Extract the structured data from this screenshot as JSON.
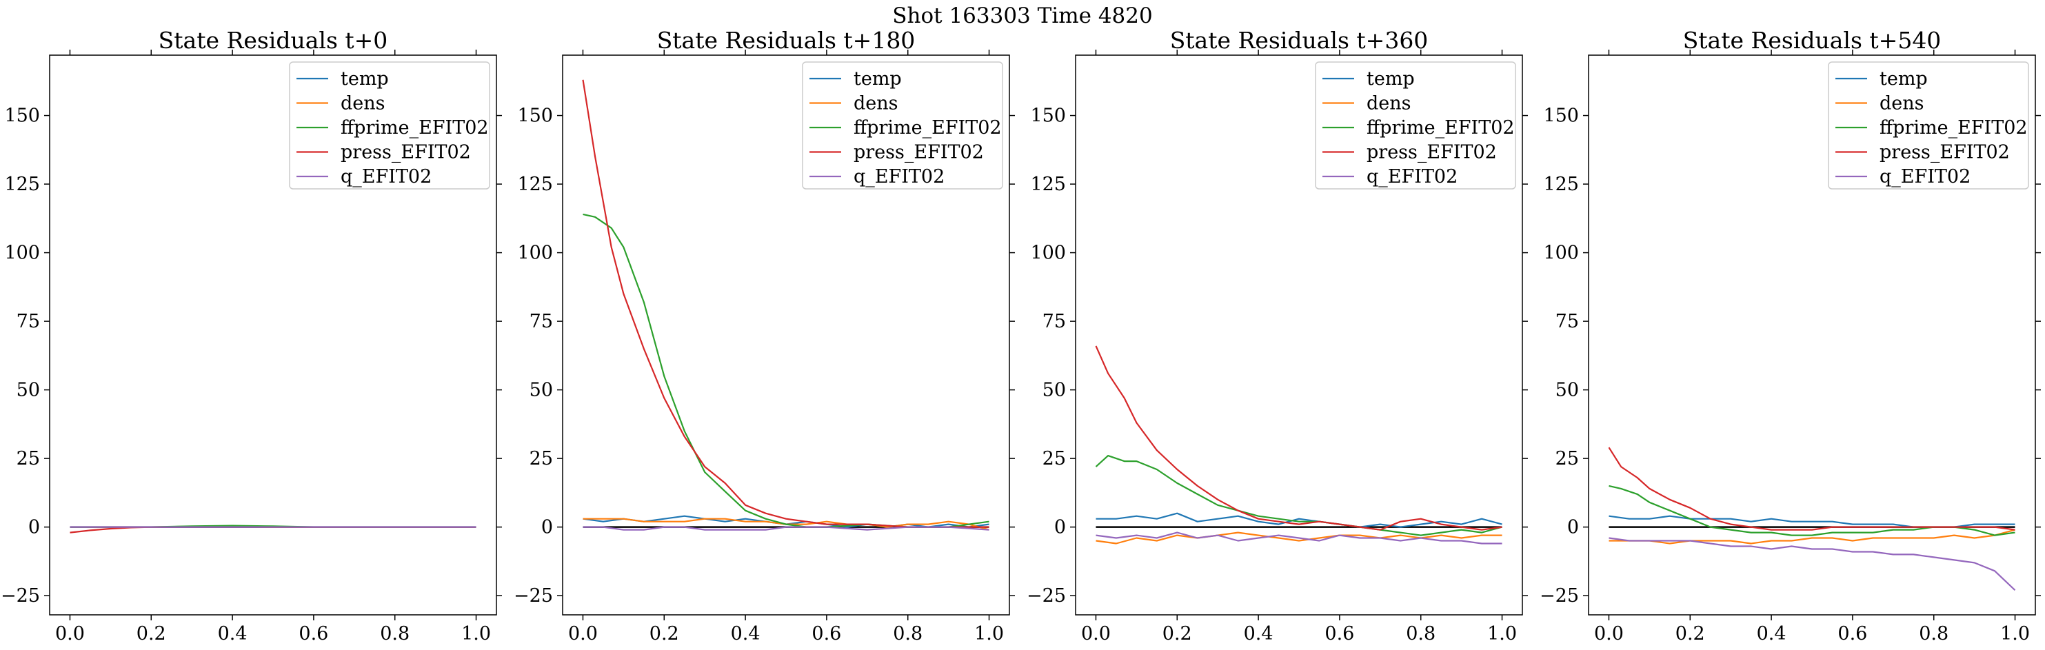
{
  "figure": {
    "suptitle": "Shot 163303   Time 4820"
  },
  "chart_data": [
    {
      "type": "line",
      "title": "State Residuals t+0",
      "xlim": [
        -0.05,
        1.05
      ],
      "ylim": [
        -32,
        172
      ],
      "xticks": [
        "0.0",
        "0.2",
        "0.4",
        "0.6",
        "0.8",
        "1.0"
      ],
      "yticks": [
        "−25",
        "0",
        "25",
        "50",
        "75",
        "100",
        "125",
        "150"
      ],
      "legend": "top-right",
      "reference_line": 0,
      "series": [
        {
          "name": "temp",
          "color": "#1f77b4",
          "x": [
            0,
            0.1,
            0.2,
            0.3,
            0.4,
            0.5,
            0.6,
            0.7,
            0.8,
            0.9,
            1.0
          ],
          "y": [
            0,
            0,
            0,
            0,
            0,
            0,
            0,
            0,
            0,
            0,
            0
          ]
        },
        {
          "name": "dens",
          "color": "#ff7f0e",
          "x": [
            0,
            0.1,
            0.2,
            0.3,
            0.4,
            0.5,
            0.6,
            0.7,
            0.8,
            0.9,
            1.0
          ],
          "y": [
            0,
            0,
            0,
            0.2,
            0.1,
            0,
            0,
            0,
            0,
            0,
            0
          ]
        },
        {
          "name": "ffprime_EFIT02",
          "color": "#2ca02c",
          "x": [
            0,
            0.1,
            0.2,
            0.3,
            0.4,
            0.5,
            0.6,
            0.7,
            0.8,
            0.9,
            1.0
          ],
          "y": [
            0,
            0,
            0,
            0.3,
            0.5,
            0.3,
            0,
            0,
            0,
            0,
            0
          ]
        },
        {
          "name": "press_EFIT02",
          "color": "#d62728",
          "x": [
            0,
            0.05,
            0.1,
            0.15,
            0.2,
            0.3,
            0.4,
            0.5,
            0.6,
            0.7,
            0.8,
            0.9,
            1.0
          ],
          "y": [
            -2,
            -1.2,
            -0.6,
            -0.2,
            0,
            0,
            0,
            0,
            0,
            0,
            0,
            0,
            0
          ]
        },
        {
          "name": "q_EFIT02",
          "color": "#9467bd",
          "x": [
            0,
            0.1,
            0.2,
            0.3,
            0.4,
            0.5,
            0.6,
            0.7,
            0.8,
            0.9,
            1.0
          ],
          "y": [
            0,
            0,
            0,
            0,
            0,
            0,
            0,
            0,
            0,
            0,
            0
          ]
        }
      ]
    },
    {
      "type": "line",
      "title": "State Residuals t+180",
      "xlim": [
        -0.05,
        1.05
      ],
      "ylim": [
        -32,
        172
      ],
      "xticks": [
        "0.0",
        "0.2",
        "0.4",
        "0.6",
        "0.8",
        "1.0"
      ],
      "yticks": [
        "−25",
        "0",
        "25",
        "50",
        "75",
        "100",
        "125",
        "150"
      ],
      "legend": "top-right",
      "reference_line": 0,
      "series": [
        {
          "name": "temp",
          "color": "#1f77b4",
          "x": [
            0,
            0.05,
            0.1,
            0.15,
            0.2,
            0.25,
            0.3,
            0.35,
            0.4,
            0.45,
            0.5,
            0.55,
            0.6,
            0.65,
            0.7,
            0.75,
            0.8,
            0.85,
            0.9,
            0.95,
            1.0
          ],
          "y": [
            3,
            2,
            3,
            2,
            3,
            4,
            3,
            2,
            3,
            2,
            1,
            2,
            1,
            0,
            1,
            0,
            1,
            0,
            1,
            0,
            1
          ]
        },
        {
          "name": "dens",
          "color": "#ff7f0e",
          "x": [
            0,
            0.05,
            0.1,
            0.15,
            0.2,
            0.25,
            0.3,
            0.35,
            0.4,
            0.45,
            0.5,
            0.55,
            0.6,
            0.65,
            0.7,
            0.75,
            0.8,
            0.85,
            0.9,
            0.95,
            1.0
          ],
          "y": [
            3,
            3,
            3,
            2,
            2,
            2,
            3,
            3,
            2,
            2,
            1,
            1,
            2,
            1,
            1,
            0,
            1,
            1,
            2,
            1,
            -1
          ]
        },
        {
          "name": "ffprime_EFIT02",
          "color": "#2ca02c",
          "x": [
            0,
            0.03,
            0.07,
            0.1,
            0.15,
            0.2,
            0.25,
            0.3,
            0.35,
            0.4,
            0.45,
            0.5,
            0.55,
            0.6,
            0.7,
            0.8,
            0.9,
            1.0
          ],
          "y": [
            114,
            113,
            109,
            102,
            82,
            55,
            35,
            20,
            13,
            6,
            3,
            1,
            0,
            0,
            1,
            0,
            0,
            2
          ]
        },
        {
          "name": "press_EFIT02",
          "color": "#d62728",
          "x": [
            0,
            0.03,
            0.07,
            0.1,
            0.15,
            0.2,
            0.25,
            0.3,
            0.35,
            0.4,
            0.45,
            0.5,
            0.55,
            0.6,
            0.7,
            0.8,
            0.9,
            1.0
          ],
          "y": [
            163,
            135,
            102,
            85,
            65,
            47,
            33,
            22,
            16,
            8,
            5,
            3,
            2,
            1,
            1,
            0,
            0,
            0
          ]
        },
        {
          "name": "q_EFIT02",
          "color": "#9467bd",
          "x": [
            0,
            0.05,
            0.1,
            0.15,
            0.2,
            0.25,
            0.3,
            0.35,
            0.4,
            0.45,
            0.5,
            0.6,
            0.7,
            0.8,
            0.9,
            1.0
          ],
          "y": [
            0,
            0,
            -1,
            -1,
            0,
            0,
            -1,
            -1,
            -1,
            -1,
            0,
            0,
            -1,
            0,
            0,
            -1
          ]
        }
      ]
    },
    {
      "type": "line",
      "title": "State Residuals t+360",
      "xlim": [
        -0.05,
        1.05
      ],
      "ylim": [
        -32,
        172
      ],
      "xticks": [
        "0.0",
        "0.2",
        "0.4",
        "0.6",
        "0.8",
        "1.0"
      ],
      "yticks": [
        "−25",
        "0",
        "25",
        "50",
        "75",
        "100",
        "125",
        "150"
      ],
      "legend": "top-right",
      "reference_line": 0,
      "series": [
        {
          "name": "temp",
          "color": "#1f77b4",
          "x": [
            0,
            0.05,
            0.1,
            0.15,
            0.2,
            0.25,
            0.3,
            0.35,
            0.4,
            0.45,
            0.5,
            0.55,
            0.6,
            0.65,
            0.7,
            0.75,
            0.8,
            0.85,
            0.9,
            0.95,
            1.0
          ],
          "y": [
            3,
            3,
            4,
            3,
            5,
            2,
            3,
            4,
            2,
            1,
            3,
            2,
            1,
            0,
            1,
            0,
            1,
            2,
            1,
            3,
            1
          ]
        },
        {
          "name": "dens",
          "color": "#ff7f0e",
          "x": [
            0,
            0.05,
            0.1,
            0.15,
            0.2,
            0.25,
            0.3,
            0.35,
            0.4,
            0.45,
            0.5,
            0.55,
            0.6,
            0.65,
            0.7,
            0.75,
            0.8,
            0.85,
            0.9,
            0.95,
            1.0
          ],
          "y": [
            -5,
            -6,
            -4,
            -5,
            -3,
            -4,
            -3,
            -2,
            -3,
            -4,
            -5,
            -4,
            -3,
            -3,
            -4,
            -3,
            -4,
            -3,
            -4,
            -3,
            -3
          ]
        },
        {
          "name": "ffprime_EFIT02",
          "color": "#2ca02c",
          "x": [
            0,
            0.03,
            0.07,
            0.1,
            0.15,
            0.2,
            0.25,
            0.3,
            0.35,
            0.4,
            0.45,
            0.5,
            0.55,
            0.6,
            0.65,
            0.7,
            0.75,
            0.8,
            0.85,
            0.9,
            0.95,
            1.0
          ],
          "y": [
            22,
            26,
            24,
            24,
            21,
            16,
            12,
            8,
            6,
            4,
            3,
            2,
            2,
            1,
            0,
            -1,
            -2,
            -3,
            -2,
            -1,
            -2,
            0
          ]
        },
        {
          "name": "press_EFIT02",
          "color": "#d62728",
          "x": [
            0,
            0.03,
            0.07,
            0.1,
            0.15,
            0.2,
            0.25,
            0.3,
            0.35,
            0.4,
            0.45,
            0.5,
            0.55,
            0.6,
            0.65,
            0.7,
            0.75,
            0.8,
            0.85,
            0.9,
            0.95,
            1.0
          ],
          "y": [
            66,
            56,
            47,
            38,
            28,
            21,
            15,
            10,
            6,
            3,
            2,
            1,
            2,
            1,
            0,
            -1,
            2,
            3,
            1,
            0,
            -1,
            0
          ]
        },
        {
          "name": "q_EFIT02",
          "color": "#9467bd",
          "x": [
            0,
            0.05,
            0.1,
            0.15,
            0.2,
            0.25,
            0.3,
            0.35,
            0.4,
            0.45,
            0.5,
            0.55,
            0.6,
            0.65,
            0.7,
            0.75,
            0.8,
            0.85,
            0.9,
            0.95,
            1.0
          ],
          "y": [
            -3,
            -4,
            -3,
            -4,
            -2,
            -4,
            -3,
            -5,
            -4,
            -3,
            -4,
            -5,
            -3,
            -4,
            -4,
            -5,
            -4,
            -5,
            -5,
            -6,
            -6
          ]
        }
      ]
    },
    {
      "type": "line",
      "title": "State Residuals t+540",
      "xlim": [
        -0.05,
        1.05
      ],
      "ylim": [
        -32,
        172
      ],
      "xticks": [
        "0.0",
        "0.2",
        "0.4",
        "0.6",
        "0.8",
        "1.0"
      ],
      "yticks": [
        "−25",
        "0",
        "25",
        "50",
        "75",
        "100",
        "125",
        "150"
      ],
      "legend": "top-right",
      "reference_line": 0,
      "series": [
        {
          "name": "temp",
          "color": "#1f77b4",
          "x": [
            0,
            0.05,
            0.1,
            0.15,
            0.2,
            0.25,
            0.3,
            0.35,
            0.4,
            0.45,
            0.5,
            0.55,
            0.6,
            0.65,
            0.7,
            0.75,
            0.8,
            0.85,
            0.9,
            0.95,
            1.0
          ],
          "y": [
            4,
            3,
            3,
            4,
            3,
            3,
            3,
            2,
            3,
            2,
            2,
            2,
            1,
            1,
            1,
            0,
            0,
            0,
            1,
            1,
            1
          ]
        },
        {
          "name": "dens",
          "color": "#ff7f0e",
          "x": [
            0,
            0.05,
            0.1,
            0.15,
            0.2,
            0.25,
            0.3,
            0.35,
            0.4,
            0.45,
            0.5,
            0.55,
            0.6,
            0.65,
            0.7,
            0.75,
            0.8,
            0.85,
            0.9,
            0.95,
            1.0
          ],
          "y": [
            -5,
            -5,
            -5,
            -6,
            -5,
            -5,
            -5,
            -6,
            -5,
            -5,
            -4,
            -4,
            -5,
            -4,
            -4,
            -4,
            -4,
            -3,
            -4,
            -3,
            -1
          ]
        },
        {
          "name": "ffprime_EFIT02",
          "color": "#2ca02c",
          "x": [
            0,
            0.03,
            0.07,
            0.1,
            0.15,
            0.2,
            0.25,
            0.3,
            0.35,
            0.4,
            0.45,
            0.5,
            0.55,
            0.6,
            0.65,
            0.7,
            0.75,
            0.8,
            0.85,
            0.9,
            0.95,
            1.0
          ],
          "y": [
            15,
            14,
            12,
            9,
            6,
            3,
            0,
            -1,
            -2,
            -2,
            -3,
            -3,
            -2,
            -2,
            -2,
            -1,
            -1,
            0,
            0,
            -1,
            -3,
            -2
          ]
        },
        {
          "name": "press_EFIT02",
          "color": "#d62728",
          "x": [
            0,
            0.03,
            0.07,
            0.1,
            0.15,
            0.2,
            0.25,
            0.3,
            0.35,
            0.4,
            0.45,
            0.5,
            0.55,
            0.6,
            0.65,
            0.7,
            0.75,
            0.8,
            0.85,
            0.9,
            0.95,
            1.0
          ],
          "y": [
            29,
            22,
            18,
            14,
            10,
            7,
            3,
            1,
            0,
            -1,
            -1,
            -1,
            0,
            0,
            0,
            0,
            0,
            0,
            0,
            0,
            0,
            -1
          ]
        },
        {
          "name": "q_EFIT02",
          "color": "#9467bd",
          "x": [
            0,
            0.05,
            0.1,
            0.15,
            0.2,
            0.25,
            0.3,
            0.35,
            0.4,
            0.45,
            0.5,
            0.55,
            0.6,
            0.65,
            0.7,
            0.75,
            0.8,
            0.85,
            0.9,
            0.95,
            1.0
          ],
          "y": [
            -4,
            -5,
            -5,
            -5,
            -5,
            -6,
            -7,
            -7,
            -8,
            -7,
            -8,
            -8,
            -9,
            -9,
            -10,
            -10,
            -11,
            -12,
            -13,
            -16,
            -23
          ]
        }
      ]
    }
  ]
}
